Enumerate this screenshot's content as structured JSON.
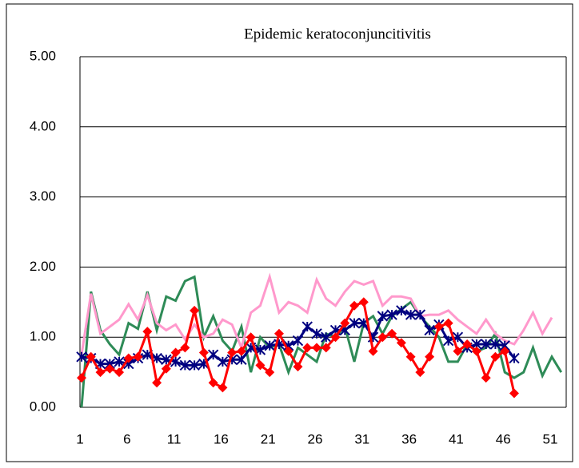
{
  "chart_data": {
    "type": "line",
    "title": "Epidemic keratoconjuncitivitis",
    "x": [
      1,
      2,
      3,
      4,
      5,
      6,
      7,
      8,
      9,
      10,
      11,
      12,
      13,
      14,
      15,
      16,
      17,
      18,
      19,
      20,
      21,
      22,
      23,
      24,
      25,
      26,
      27,
      28,
      29,
      30,
      31,
      32,
      33,
      34,
      35,
      36,
      37,
      38,
      39,
      40,
      41,
      42,
      43,
      44,
      45,
      46,
      47,
      48,
      49,
      50,
      51,
      52
    ],
    "xlim": [
      1,
      52.7
    ],
    "xticks": [
      1,
      6,
      11,
      16,
      21,
      26,
      31,
      36,
      41,
      46,
      51
    ],
    "ylim": [
      0,
      5
    ],
    "yticks": [
      {
        "value": 0,
        "label": "0.00"
      },
      {
        "value": 1,
        "label": "1.00"
      },
      {
        "value": 2,
        "label": "2.00"
      },
      {
        "value": 3,
        "label": "3.00"
      },
      {
        "value": 4,
        "label": "4.00"
      },
      {
        "value": 5,
        "label": "5.00"
      }
    ],
    "grid": true,
    "series": [
      {
        "color": "#2e8b57",
        "marker": "none",
        "values": [
          0.0,
          1.65,
          1.1,
          0.9,
          0.75,
          1.2,
          1.12,
          1.65,
          1.1,
          1.58,
          1.52,
          1.8,
          1.86,
          1.0,
          1.3,
          0.95,
          0.8,
          1.15,
          0.5,
          1.0,
          0.85,
          0.9,
          0.5,
          0.85,
          0.75,
          0.65,
          1.05,
          1.0,
          1.15,
          0.65,
          1.2,
          1.3,
          1.05,
          1.3,
          1.4,
          1.5,
          1.3,
          1.15,
          1.0,
          0.65,
          0.65,
          0.9,
          0.8,
          0.85,
          1.05,
          0.5,
          0.42,
          0.5,
          0.85,
          0.45,
          0.72,
          0.5
        ]
      },
      {
        "color": "#ff99cc",
        "marker": "none",
        "values": [
          0.75,
          1.62,
          1.05,
          1.15,
          1.25,
          1.47,
          1.25,
          1.6,
          1.2,
          1.1,
          1.18,
          0.97,
          1.18,
          1.0,
          1.05,
          1.25,
          1.18,
          0.85,
          1.35,
          1.45,
          1.86,
          1.35,
          1.5,
          1.45,
          1.35,
          1.82,
          1.55,
          1.45,
          1.65,
          1.8,
          1.75,
          1.8,
          1.45,
          1.58,
          1.58,
          1.55,
          1.3,
          1.32,
          1.32,
          1.38,
          1.25,
          1.15,
          1.05,
          1.25,
          1.05,
          0.95,
          0.9,
          1.1,
          1.35,
          1.05,
          1.28,
          null
        ]
      },
      {
        "color": "#000080",
        "marker": "asterisk",
        "values": [
          0.72,
          0.7,
          0.62,
          0.62,
          0.65,
          0.62,
          0.7,
          0.75,
          0.7,
          0.68,
          0.65,
          0.6,
          0.6,
          0.62,
          0.75,
          0.65,
          0.68,
          0.68,
          0.85,
          0.82,
          0.88,
          0.9,
          0.88,
          0.95,
          1.15,
          1.05,
          1.0,
          1.1,
          1.1,
          1.2,
          1.2,
          1.0,
          1.3,
          1.32,
          1.38,
          1.32,
          1.32,
          1.1,
          1.18,
          0.95,
          1.0,
          0.85,
          0.9,
          0.9,
          0.9,
          0.88,
          0.7,
          null,
          null,
          null,
          null,
          null
        ]
      },
      {
        "color": "#ff0000",
        "marker": "diamond",
        "values": [
          0.42,
          0.72,
          0.5,
          0.55,
          0.5,
          0.7,
          0.72,
          1.08,
          0.35,
          0.55,
          0.78,
          0.85,
          1.38,
          0.78,
          0.35,
          0.28,
          0.78,
          0.8,
          1.0,
          0.6,
          0.5,
          1.05,
          0.8,
          0.58,
          0.85,
          0.85,
          0.85,
          1.0,
          1.2,
          1.45,
          1.5,
          0.8,
          1.0,
          1.05,
          0.92,
          0.72,
          0.5,
          0.72,
          1.15,
          1.2,
          0.8,
          0.9,
          0.8,
          0.42,
          0.72,
          0.8,
          0.2,
          null,
          null,
          null,
          null,
          null
        ]
      }
    ]
  }
}
